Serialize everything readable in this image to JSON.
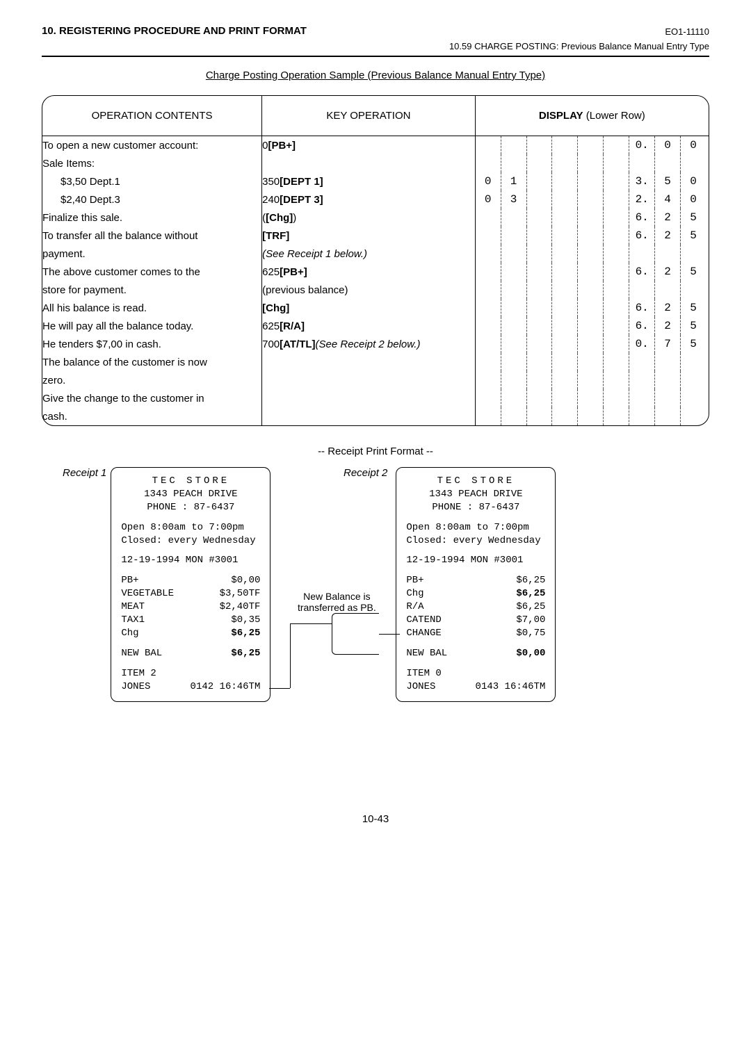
{
  "header": {
    "left": "10. REGISTERING PROCEDURE AND PRINT FORMAT",
    "right": "EO1-11110",
    "sub": "10.59  CHARGE POSTING:  Previous Balance Manual Entry Type"
  },
  "sample_title": "Charge Posting Operation Sample (Previous Balance Manual Entry Type)",
  "columns": {
    "c1": "OPERATION CONTENTS",
    "c2": "KEY OPERATION",
    "c3_a": "DISPLAY",
    "c3_b": " (Lower Row)"
  },
  "section1": {
    "ops": [
      "To open a new customer account:",
      "Sale Items:",
      "$3,50 Dept.1",
      "$2,40 Dept.3",
      "Finalize this sale.",
      "To transfer all the balance without",
      "payment."
    ],
    "keys": [
      {
        "a": "0 ",
        "b": "[PB+]"
      },
      {
        "a": "",
        "b": ""
      },
      {
        "a": "350 ",
        "b": "[DEPT 1]"
      },
      {
        "a": "240 ",
        "b": "[DEPT 3]"
      },
      {
        "a": "(",
        "b": "[Chg]",
        "c": ")"
      },
      {
        "a": "",
        "b": "[TRF]"
      },
      {
        "a": "",
        "b": "",
        "it": "(See Receipt 1 below.)"
      }
    ],
    "disp": [
      [
        "",
        "",
        "",
        "",
        "",
        "",
        "0.",
        "0",
        "0"
      ],
      [
        "",
        "",
        "",
        "",
        "",
        "",
        "",
        "",
        ""
      ],
      [
        "0",
        "1",
        "",
        "",
        "",
        "",
        "3.",
        "5",
        "0"
      ],
      [
        "0",
        "3",
        "",
        "",
        "",
        "",
        "2.",
        "4",
        "0"
      ],
      [
        "",
        "",
        "",
        "",
        "",
        "",
        "6.",
        "2",
        "5"
      ],
      [
        "",
        "",
        "",
        "",
        "",
        "",
        "6.",
        "2",
        "5"
      ],
      [
        "",
        "",
        "",
        "",
        "",
        "",
        "",
        "",
        ""
      ]
    ]
  },
  "section2": {
    "ops": [
      "The above customer comes to the",
      "store for payment.",
      "All his balance is read.",
      "He will pay all the balance today.",
      "He tenders $7,00 in cash.",
      "The balance of the customer is now",
      "zero.",
      "Give the change to the customer in",
      "cash."
    ],
    "keys": [
      {
        "a": "625 ",
        "b": "[PB+]"
      },
      {
        "a": "(previous balance)"
      },
      {
        "a": "",
        "b": "[Chg]"
      },
      {
        "a": "625 ",
        "b": "[R/A]"
      },
      {
        "a": "700 ",
        "b": "[AT/TL]",
        "it": " (See Receipt 2 below.)"
      },
      {
        "a": ""
      },
      {
        "a": ""
      },
      {
        "a": ""
      },
      {
        "a": ""
      }
    ],
    "disp": [
      [
        "",
        "",
        "",
        "",
        "",
        "",
        "6.",
        "2",
        "5"
      ],
      [
        "",
        "",
        "",
        "",
        "",
        "",
        "",
        "",
        ""
      ],
      [
        "",
        "",
        "",
        "",
        "",
        "",
        "6.",
        "2",
        "5"
      ],
      [
        "",
        "",
        "",
        "",
        "",
        "",
        "6.",
        "2",
        "5"
      ],
      [
        "",
        "",
        "",
        "",
        "",
        "",
        "0.",
        "7",
        "5"
      ],
      [
        "",
        "",
        "",
        "",
        "",
        "",
        "",
        "",
        ""
      ],
      [
        "",
        "",
        "",
        "",
        "",
        "",
        "",
        "",
        ""
      ],
      [
        "",
        "",
        "",
        "",
        "",
        "",
        "",
        "",
        ""
      ],
      [
        "",
        "",
        "",
        "",
        "",
        "",
        "",
        "",
        ""
      ]
    ]
  },
  "receipt_title": "-- Receipt Print Format --",
  "receipt_labels": {
    "r1": "Receipt 1",
    "r2": "Receipt 2"
  },
  "mid_note_l1": "New Balance is",
  "mid_note_l2": "transferred as PB.",
  "store": {
    "name": "TEC STORE",
    "addr": "1343 PEACH DRIVE",
    "phone": "PHONE : 87-6437",
    "open": "Open  8:00am to 7:00pm",
    "closed": "Closed: every Wednesday"
  },
  "r1": {
    "date": "12-19-1994  MON #3001",
    "lines": [
      [
        "PB+",
        "$0,00"
      ],
      [
        "VEGETABLE",
        "$3,50TF"
      ],
      [
        "MEAT",
        "$2,40TF"
      ],
      [
        "TAX1",
        "$0,35"
      ],
      [
        "Chg",
        "$6,25"
      ]
    ],
    "newbal": [
      "NEW BAL",
      "$6,25"
    ],
    "item": "ITEM  2",
    "foot": [
      "JONES",
      "0142 16:46TM"
    ]
  },
  "r2": {
    "date": "12-19-1994  MON #3001",
    "lines": [
      [
        "PB+",
        "$6,25"
      ],
      [
        "Chg",
        "$6,25"
      ],
      [
        "R/A",
        "$6,25"
      ],
      [
        "CATEND",
        "$7,00"
      ],
      [
        "CHANGE",
        "$0,75"
      ]
    ],
    "newbal": [
      "NEW BAL",
      "$0,00"
    ],
    "item": "ITEM  0",
    "foot": [
      "JONES",
      "0143 16:46TM"
    ]
  },
  "page_num": "10-43"
}
